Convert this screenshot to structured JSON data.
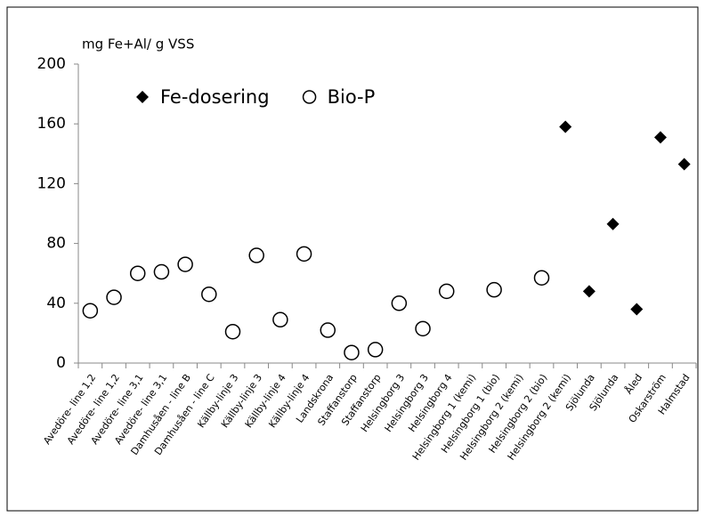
{
  "chart_data": {
    "type": "scatter",
    "y_label": "mg Fe+Al/ g VSS",
    "categories": [
      "Avedöre- line 1,2",
      "Avedöre- line 1,2",
      "Avedöre- line 3,1",
      "Avedöre- line 3,1",
      "Damhusåen - line B",
      "Damhusåen - line C",
      "Källby-linje 3",
      "Källby-linje 3",
      "Källby-linje 4",
      "Källby-linje 4",
      "Landskrona",
      "Staffanstorp",
      "Staffanstorp",
      "Helsingborg 3",
      "Helsingborg 3",
      "Helsingborg 4",
      "Helsingborg 1 (kemi)",
      "Helsingborg 1 (bio)",
      "Helsingborg 2 (kemi)",
      "Helsingborg 2 (bio)",
      "Helsingborg 2 (kemi)",
      "Sjölunda",
      "Sjölunda",
      "Åled",
      "Oskarström",
      "Halmstad"
    ],
    "series": [
      {
        "name": "Fe-dosering",
        "marker": "diamond",
        "color": "#000000",
        "values": [
          null,
          null,
          null,
          null,
          null,
          null,
          null,
          null,
          null,
          null,
          null,
          null,
          null,
          null,
          null,
          null,
          null,
          null,
          null,
          null,
          158,
          48,
          93,
          36,
          151,
          133
        ]
      },
      {
        "name": "Bio-P",
        "marker": "circle",
        "color": "#000000",
        "values": [
          35,
          44,
          60,
          61,
          66,
          46,
          21,
          72,
          29,
          73,
          22,
          7,
          9,
          40,
          23,
          48,
          null,
          49,
          null,
          57,
          null,
          null,
          null,
          null,
          null,
          null
        ]
      }
    ],
    "ylim": [
      0,
      200
    ],
    "yticks": [
      0,
      40,
      80,
      120,
      160,
      200
    ],
    "grid": false
  }
}
